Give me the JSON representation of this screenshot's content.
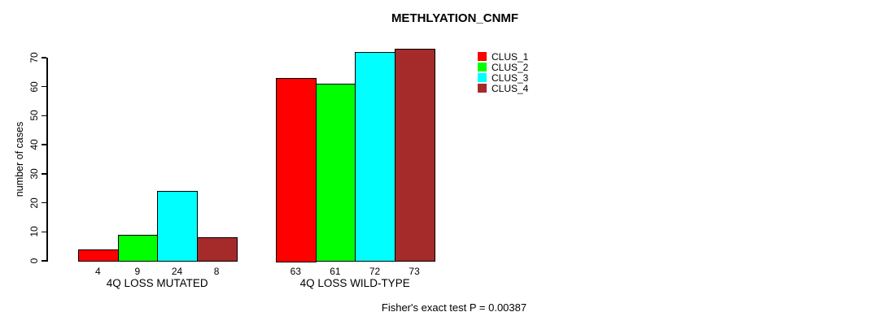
{
  "chart_data": {
    "type": "bar",
    "title": "METHLYATION_CNMF",
    "xlabel": "",
    "ylabel": "number of cases",
    "categories": [
      "4Q LOSS MUTATED",
      "4Q LOSS WILD-TYPE"
    ],
    "series": [
      {
        "name": "CLUS_1",
        "color": "#FF0000",
        "values": [
          4,
          63
        ]
      },
      {
        "name": "CLUS_2",
        "color": "#00FF00",
        "values": [
          9,
          61
        ]
      },
      {
        "name": "CLUS_3",
        "color": "#00FFFF",
        "values": [
          24,
          72
        ]
      },
      {
        "name": "CLUS_4",
        "color": "#A52A2A",
        "values": [
          8,
          73
        ]
      }
    ],
    "bar_value_labels": [
      [
        4,
        9,
        24,
        8
      ],
      [
        63,
        61,
        72,
        73
      ]
    ],
    "yticks": [
      0,
      10,
      20,
      30,
      40,
      50,
      60,
      70
    ],
    "ylim": [
      0,
      73
    ],
    "grid": false,
    "legend_position": "top-right-inside",
    "annotation": "Fisher's exact test P = 0.00387"
  },
  "colors": {
    "background": "#FFFFFF",
    "axis": "#000000",
    "bar_border": "#000000",
    "text": "#000000"
  }
}
